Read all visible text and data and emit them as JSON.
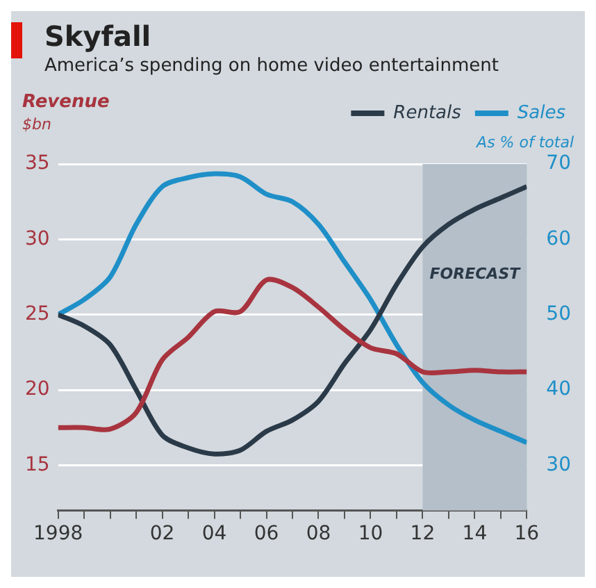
{
  "chart_data": {
    "type": "line",
    "title": "Skyfall",
    "subtitle": "America’s spending on home video entertainment",
    "ylabel": "$bn",
    "y2label": "As % of total",
    "x": [
      1998,
      1999,
      2000,
      2001,
      2002,
      2003,
      2004,
      2005,
      2006,
      2007,
      2008,
      2009,
      2010,
      2011,
      2012,
      2013,
      2014,
      2015,
      2016
    ],
    "series": [
      {
        "name": "Revenue",
        "color": "#a8343f",
        "values": [
          17.5,
          17.5,
          17.4,
          18.5,
          22,
          23.5,
          25.2,
          25.2,
          27.3,
          26.8,
          25.5,
          24,
          22.8,
          22.4,
          21.2,
          21.2,
          21.3,
          21.2,
          21.2
        ]
      },
      {
        "name": "Rentals",
        "color": "#2b3a48",
        "axis": "y2",
        "values": [
          50,
          48.5,
          46,
          40,
          34,
          32.3,
          31.5,
          32,
          34.5,
          36,
          38.5,
          43.5,
          48,
          54,
          59,
          62,
          64,
          65.5,
          67
        ]
      },
      {
        "name": "Sales",
        "color": "#1f8fc8",
        "axis": "y2",
        "values": [
          50,
          52,
          55,
          62,
          67,
          68.2,
          68.7,
          68.3,
          66,
          65,
          62,
          57,
          52,
          46,
          41,
          38,
          36,
          34.5,
          33
        ]
      }
    ],
    "xlim": [
      1998,
      2016
    ],
    "xticks": [
      {
        "value": 1998,
        "label": "1998"
      },
      {
        "value": 1999,
        "label": null
      },
      {
        "value": 2000,
        "label": null
      },
      {
        "value": 2001,
        "label": null
      },
      {
        "value": 2002,
        "label": "02"
      },
      {
        "value": 2003,
        "label": null
      },
      {
        "value": 2004,
        "label": "04"
      },
      {
        "value": 2005,
        "label": null
      },
      {
        "value": 2006,
        "label": "06"
      },
      {
        "value": 2007,
        "label": null
      },
      {
        "value": 2008,
        "label": "08"
      },
      {
        "value": 2009,
        "label": null
      },
      {
        "value": 2010,
        "label": "10"
      },
      {
        "value": 2011,
        "label": null
      },
      {
        "value": 2012,
        "label": "12"
      },
      {
        "value": 2013,
        "label": null
      },
      {
        "value": 2014,
        "label": "14"
      },
      {
        "value": 2015,
        "label": null
      },
      {
        "value": 2016,
        "label": "16"
      }
    ],
    "ylim": [
      12,
      35
    ],
    "yticks": [
      15,
      20,
      25,
      30,
      35
    ],
    "y2lim": [
      24,
      70
    ],
    "y2ticks": [
      30,
      40,
      50,
      60,
      70
    ],
    "bands": [
      {
        "axis": "x",
        "from": 2012,
        "to": 2016,
        "label": "FORECAST",
        "color": "#b4bfc9"
      }
    ],
    "grid": "y",
    "legend": "top right",
    "marker": "none",
    "line_style": "solid"
  }
}
